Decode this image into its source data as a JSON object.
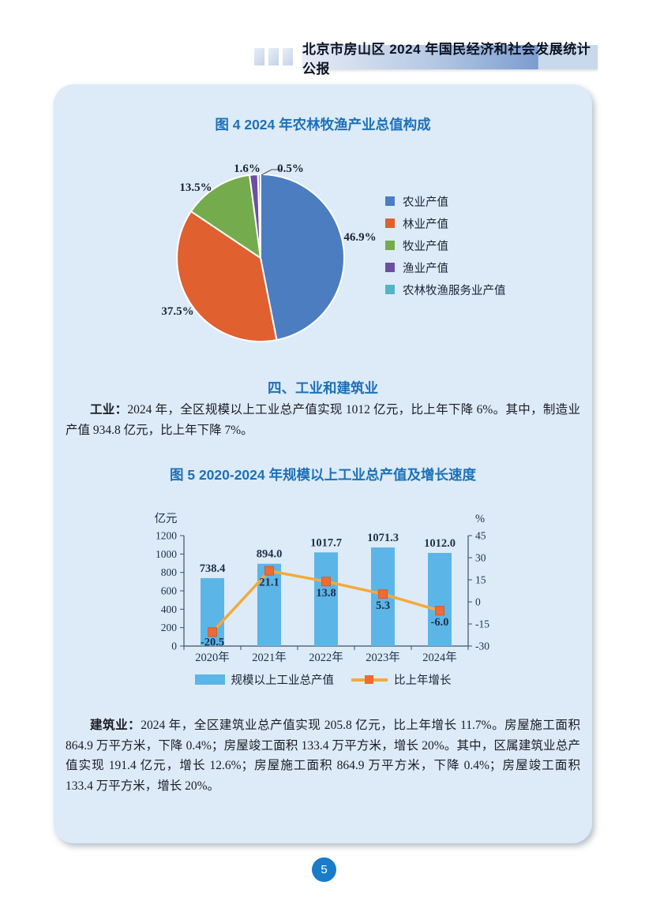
{
  "page": {
    "header_title": "北京市房山区 2024 年国民经济和社会发展统计公报",
    "page_number": "5"
  },
  "figure4": {
    "title": "图 4  2024 年农林牧渔产业总值构成"
  },
  "figure5": {
    "title": "图 5  2020-2024 年规模以上工业总产值及增长速度"
  },
  "section": {
    "heading": "四、工业和建筑业",
    "industry_label": "工业：",
    "industry_text": "2024 年，全区规模以上工业总产值实现 1012 亿元，比上年下降 6%。其中，制造业产值 934.8 亿元，比上年下降 7%。",
    "construction_label": "建筑业：",
    "construction_text": "2024 年，全区建筑业总产值实现 205.8 亿元，比上年增长 11.7%。房屋施工面积 864.9 万平方米，下降 0.4%；房屋竣工面积 133.4 万平方米，增长 20%。其中，区属建筑业总产值实现 191.4 亿元，增长 12.6%；房屋施工面积 864.9 万平方米，下降 0.4%；房屋竣工面积 133.4 万平方米，增长 20%。"
  },
  "chart_data": [
    {
      "type": "pie",
      "title": "2024年农林牧渔产业总值构成",
      "labels": [
        "农业产值",
        "林业产值",
        "牧业产值",
        "渔业产值",
        "农林牧渔服务业产值"
      ],
      "values": [
        46.9,
        37.5,
        13.5,
        1.6,
        0.5
      ],
      "unit": "%",
      "colors": [
        "#4C7DC0",
        "#E0602F",
        "#74AB4C",
        "#6C4FA1",
        "#52B4C7"
      ],
      "start": "12点钟方向顺时针",
      "legend_position": "right"
    },
    {
      "type": "bar+line",
      "title": "2020-2024年规模以上工业总产值及增长速度",
      "categories": [
        "2020年",
        "2021年",
        "2022年",
        "2023年",
        "2024年"
      ],
      "series": [
        {
          "name": "规模以上工业总产值",
          "type": "bar",
          "axis": "left",
          "values": [
            738.4,
            894.0,
            1017.7,
            1071.3,
            1012.0
          ],
          "color": "#5CB5E7"
        },
        {
          "name": "比上年增长",
          "type": "line",
          "axis": "right",
          "values": [
            -20.5,
            21.1,
            13.8,
            5.3,
            -6.0
          ],
          "color": "#F5A93B",
          "marker_color": "#ED6B35"
        }
      ],
      "left_axis": {
        "label": "亿元",
        "min": 0,
        "max": 1200,
        "step": 200
      },
      "right_axis": {
        "label": "%",
        "min": -30,
        "max": 45,
        "step": 15
      },
      "grid": false,
      "legend_position": "bottom",
      "text_color": "#1e2f4d"
    }
  ]
}
